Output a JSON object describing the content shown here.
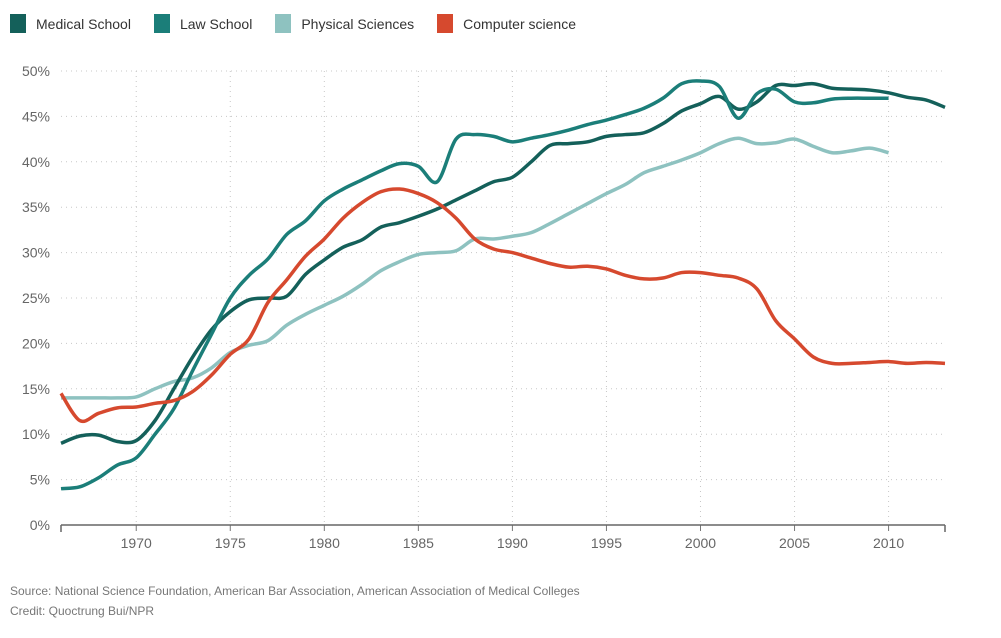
{
  "chart_data": {
    "type": "line",
    "title": "",
    "xlabel": "",
    "ylabel": "",
    "xlim": [
      1966,
      2013
    ],
    "ylim": [
      0,
      50
    ],
    "yticks": [
      0,
      5,
      10,
      15,
      20,
      25,
      30,
      35,
      40,
      45,
      50
    ],
    "ytick_labels": [
      "0%",
      "5%",
      "10%",
      "15%",
      "20%",
      "25%",
      "30%",
      "35%",
      "40%",
      "45%",
      "50%"
    ],
    "xticks": [
      1970,
      1975,
      1980,
      1985,
      1990,
      1995,
      2000,
      2005,
      2010
    ],
    "xtick_labels": [
      "1970",
      "1975",
      "1980",
      "1985",
      "1990",
      "1995",
      "2000",
      "2005",
      "2010"
    ],
    "grid": true,
    "legend_position": "top-left",
    "series": [
      {
        "name": "Medical School",
        "color": "#14605a",
        "x": [
          1966,
          1967,
          1968,
          1969,
          1970,
          1971,
          1972,
          1973,
          1974,
          1975,
          1976,
          1977,
          1978,
          1979,
          1980,
          1981,
          1982,
          1983,
          1984,
          1985,
          1986,
          1987,
          1988,
          1989,
          1990,
          1991,
          1992,
          1993,
          1994,
          1995,
          1996,
          1997,
          1998,
          1999,
          2000,
          2001,
          2002,
          2003,
          2004,
          2005,
          2006,
          2007,
          2008,
          2009,
          2010,
          2011,
          2012,
          2013
        ],
        "values": [
          9.0,
          9.8,
          9.9,
          9.2,
          9.3,
          11.5,
          15.0,
          18.5,
          21.5,
          23.5,
          24.8,
          25.0,
          25.2,
          27.6,
          29.2,
          30.6,
          31.4,
          32.8,
          33.3,
          34.0,
          34.8,
          35.8,
          36.8,
          37.8,
          38.3,
          40.0,
          41.8,
          42.0,
          42.2,
          42.8,
          43.0,
          43.2,
          44.2,
          45.6,
          46.4,
          47.2,
          45.8,
          46.6,
          48.4,
          48.4,
          48.6,
          48.1,
          48.0,
          47.9,
          47.6,
          47.1,
          46.8,
          46.0
        ]
      },
      {
        "name": "Law School",
        "color": "#1b7e79",
        "x": [
          1966,
          1967,
          1968,
          1969,
          1970,
          1971,
          1972,
          1973,
          1974,
          1975,
          1976,
          1977,
          1978,
          1979,
          1980,
          1981,
          1982,
          1983,
          1984,
          1985,
          1986,
          1987,
          1988,
          1989,
          1990,
          1991,
          1992,
          1993,
          1994,
          1995,
          1996,
          1997,
          1998,
          1999,
          2000,
          2001,
          2002,
          2003,
          2004,
          2005,
          2006,
          2007,
          2008,
          2009,
          2010
        ],
        "values": [
          4.0,
          4.2,
          5.2,
          6.6,
          7.4,
          10.0,
          12.8,
          17.0,
          21.0,
          25.0,
          27.5,
          29.3,
          32.0,
          33.5,
          35.7,
          37.0,
          38.0,
          39.0,
          39.8,
          39.5,
          37.8,
          42.5,
          43.0,
          42.8,
          42.2,
          42.6,
          43.0,
          43.5,
          44.1,
          44.6,
          45.2,
          45.9,
          47.0,
          48.6,
          48.9,
          48.3,
          44.8,
          47.5,
          48.0,
          46.6,
          46.5,
          46.9,
          47.0,
          47.0,
          47.0
        ]
      },
      {
        "name": "Physical Sciences",
        "color": "#8ec2c0",
        "x": [
          1966,
          1967,
          1968,
          1969,
          1970,
          1971,
          1972,
          1973,
          1974,
          1975,
          1976,
          1977,
          1978,
          1979,
          1980,
          1981,
          1982,
          1983,
          1984,
          1985,
          1986,
          1987,
          1988,
          1989,
          1990,
          1991,
          1992,
          1993,
          1994,
          1995,
          1996,
          1997,
          1998,
          1999,
          2000,
          2001,
          2002,
          2003,
          2004,
          2005,
          2006,
          2007,
          2008,
          2009,
          2010
        ],
        "values": [
          14.0,
          14.0,
          14.0,
          14.0,
          14.1,
          15.0,
          15.8,
          16.2,
          17.3,
          19.0,
          19.8,
          20.3,
          22.0,
          23.2,
          24.2,
          25.2,
          26.5,
          28.0,
          29.0,
          29.8,
          30.0,
          30.2,
          31.5,
          31.5,
          31.8,
          32.2,
          33.2,
          34.3,
          35.4,
          36.5,
          37.5,
          38.8,
          39.5,
          40.2,
          41.0,
          42.0,
          42.6,
          42.0,
          42.1,
          42.5,
          41.7,
          41.0,
          41.2,
          41.5,
          41.0
        ]
      },
      {
        "name": "Computer science",
        "color": "#d6492e",
        "x": [
          1966,
          1967,
          1968,
          1969,
          1970,
          1971,
          1972,
          1973,
          1974,
          1975,
          1976,
          1977,
          1978,
          1979,
          1980,
          1981,
          1982,
          1983,
          1984,
          1985,
          1986,
          1987,
          1988,
          1989,
          1990,
          1991,
          1992,
          1993,
          1994,
          1995,
          1996,
          1997,
          1998,
          1999,
          2000,
          2001,
          2002,
          2003,
          2004,
          2005,
          2006,
          2007,
          2008,
          2009,
          2010,
          2011,
          2012,
          2013
        ],
        "values": [
          14.5,
          11.5,
          12.3,
          12.9,
          13.0,
          13.4,
          13.7,
          14.7,
          16.5,
          18.8,
          20.5,
          24.5,
          27.0,
          29.6,
          31.5,
          33.8,
          35.5,
          36.7,
          37.0,
          36.5,
          35.5,
          33.8,
          31.5,
          30.4,
          30.0,
          29.4,
          28.8,
          28.4,
          28.5,
          28.2,
          27.5,
          27.1,
          27.2,
          27.8,
          27.8,
          27.5,
          27.2,
          26.0,
          22.5,
          20.5,
          18.5,
          17.8,
          17.8,
          17.9,
          18.0,
          17.8,
          17.9,
          17.8
        ]
      }
    ]
  },
  "legend": [
    {
      "label": "Medical School",
      "color": "#14605a"
    },
    {
      "label": "Law School",
      "color": "#1b7e79"
    },
    {
      "label": "Physical Sciences",
      "color": "#8ec2c0"
    },
    {
      "label": "Computer science",
      "color": "#d6492e"
    }
  ],
  "footer": {
    "source": "Source: National Science Foundation, American Bar Association, American Association of Medical Colleges",
    "credit": "Credit: Quoctrung Bui/NPR"
  }
}
